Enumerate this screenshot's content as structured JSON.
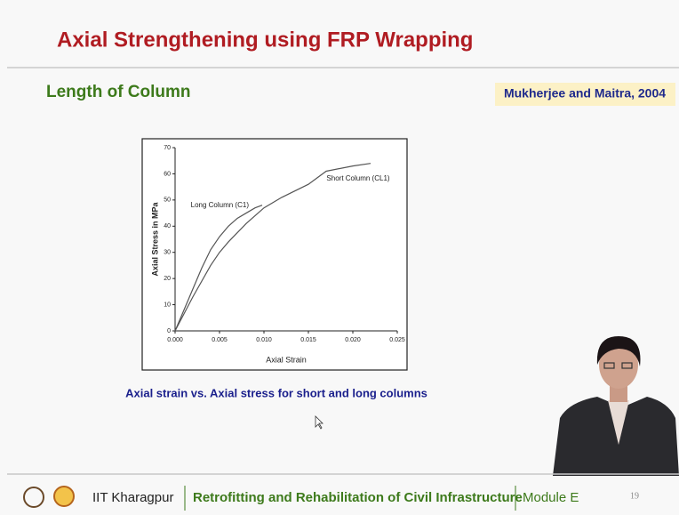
{
  "slide": {
    "title": "Axial Strengthening using FRP Wrapping",
    "subtitle": "Length of Column",
    "reference": "Mukherjee and Maitra, 2004",
    "caption": "Axial strain vs. Axial stress for short and long columns"
  },
  "footer": {
    "institute": "IIT Kharagpur",
    "course": "Retrofitting and Rehabilitation of Civil Infrastructure",
    "module": "Module E",
    "page": "19"
  },
  "chart_data": {
    "type": "line",
    "x_label": "Axial Strain",
    "y_label": "Axial Stress in MPa",
    "xlim": [
      0,
      0.025
    ],
    "xticks": [
      {
        "value": 0,
        "label": "0.000"
      },
      {
        "value": 0.005,
        "label": "0.005"
      },
      {
        "value": 0.01,
        "label": "0.010"
      },
      {
        "value": 0.015,
        "label": "0.015"
      },
      {
        "value": 0.02,
        "label": "0.020"
      },
      {
        "value": 0.025,
        "label": "0.025"
      }
    ],
    "ylim": [
      0,
      70
    ],
    "yticks": [
      0,
      10,
      20,
      30,
      40,
      50,
      60,
      70
    ],
    "grid": false,
    "series": [
      {
        "name": "Long Column (C1)",
        "color": "#555555",
        "x": [
          0,
          0.001,
          0.002,
          0.003,
          0.004,
          0.005,
          0.006,
          0.007,
          0.008,
          0.009,
          0.0098
        ],
        "values": [
          0,
          8,
          16,
          24,
          31,
          36,
          40,
          43,
          45,
          47,
          48
        ]
      },
      {
        "name": "Short Column (CL1)",
        "color": "#555555",
        "x": [
          0,
          0.002,
          0.004,
          0.005,
          0.006,
          0.008,
          0.01,
          0.012,
          0.015,
          0.017,
          0.02,
          0.022
        ],
        "values": [
          0,
          13,
          25,
          30,
          34,
          41,
          47,
          51,
          56,
          61,
          63,
          64
        ]
      }
    ]
  }
}
